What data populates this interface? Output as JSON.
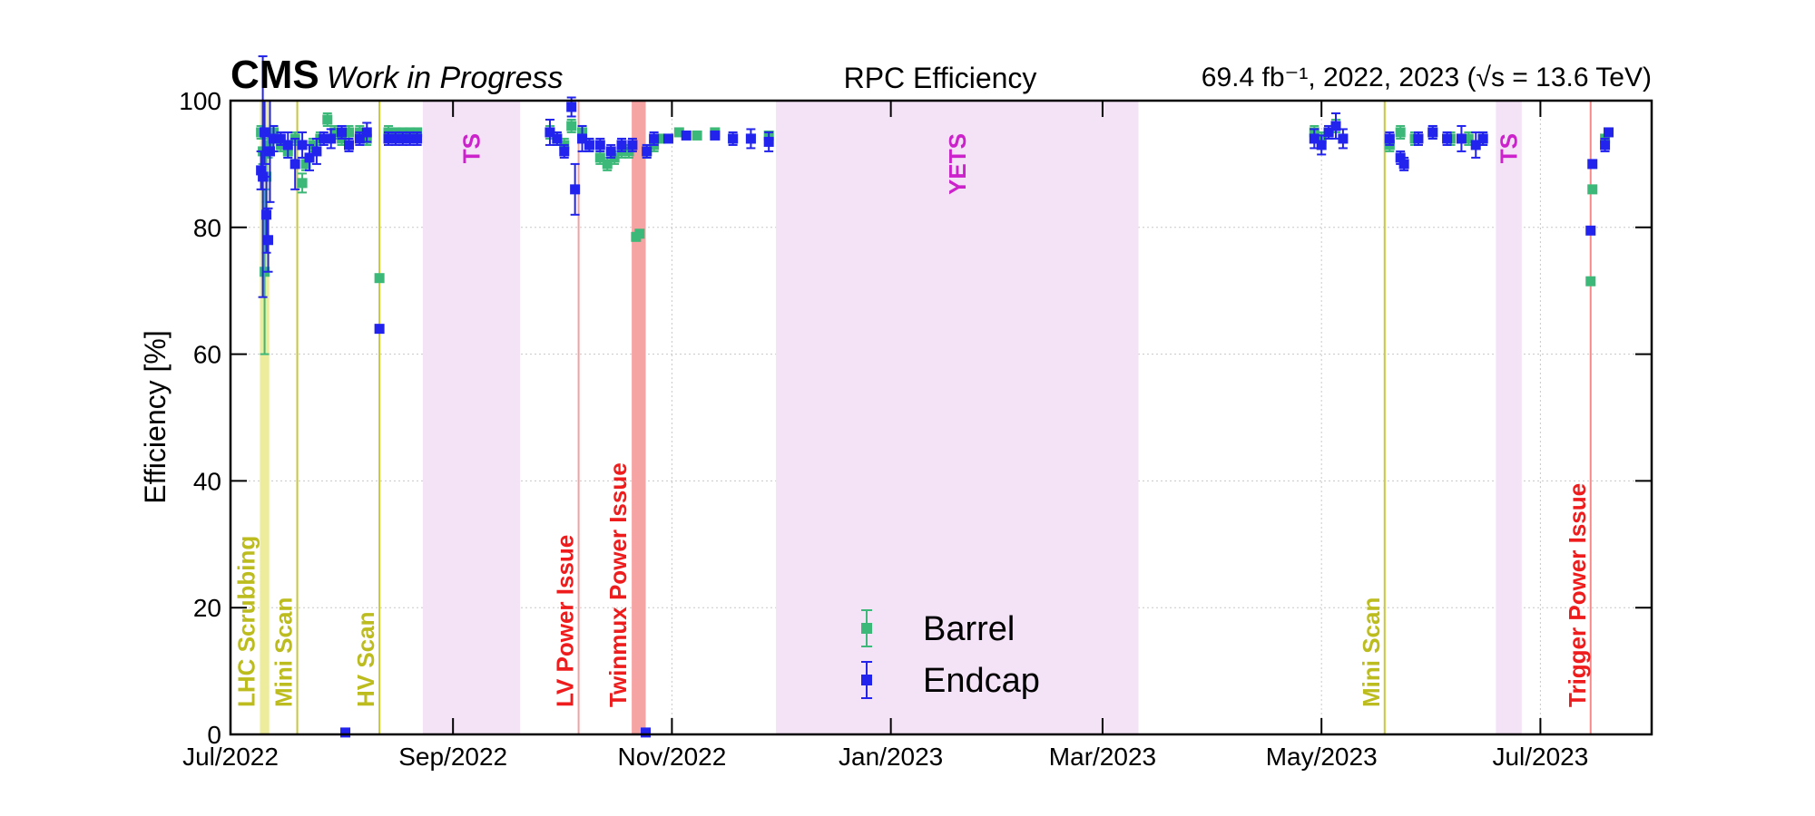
{
  "chart_data": {
    "type": "errorbar",
    "experiment": "CMS",
    "status": "Work in Progress",
    "title": "RPC Efficiency",
    "luminosity_label": "69.4 fb⁻¹, 2022, 2023 (√s = 13.6 TeV)",
    "y_label": "Efficiency [%]",
    "xlim": [
      0,
      396
    ],
    "xticks": [
      {
        "value": 0,
        "label": "Jul/2022"
      },
      {
        "value": 62,
        "label": "Sep/2022"
      },
      {
        "value": 123,
        "label": "Nov/2022"
      },
      {
        "value": 184,
        "label": "Jan/2023"
      },
      {
        "value": 243,
        "label": "Mar/2023"
      },
      {
        "value": 304,
        "label": "May/2023"
      },
      {
        "value": 365,
        "label": "Jul/2023"
      }
    ],
    "ylim": [
      0,
      100
    ],
    "yticks": [
      0,
      20,
      40,
      60,
      80,
      100
    ],
    "grid": true,
    "legend_position": "lower center",
    "regions": [
      {
        "label": "LHC Scrubbing",
        "start": 8.2,
        "end": 10.8,
        "color": "#ecec9c",
        "label_color": "#bcbc1e"
      },
      {
        "label": "Mini Scan",
        "start": 18.6,
        "end": 18.6,
        "color": "#c8c83a",
        "label_color": "#bcbc1e"
      },
      {
        "label": "HV Scan",
        "start": 41.5,
        "end": 41.5,
        "color": "#c8c83a",
        "label_color": "#bcbc1e"
      },
      {
        "label": "TS",
        "start": 53.6,
        "end": 80.7,
        "color": "#f4e2f6",
        "label_color": "#cc22cc"
      },
      {
        "label": "LV Power Issue",
        "start": 97,
        "end": 97,
        "color": "#f4a0a0",
        "label_color": "#ee1c1c"
      },
      {
        "label": "Twinmux Power Issue",
        "start": 111.8,
        "end": 115.7,
        "color": "#f5a3a3",
        "label_color": "#ee1c1c"
      },
      {
        "label": "YETS",
        "start": 152,
        "end": 253,
        "color": "#f4e2f6",
        "label_color": "#cc22cc"
      },
      {
        "label": "Mini Scan",
        "start": 321.6,
        "end": 321.6,
        "color": "#c8c83a",
        "label_color": "#bcbc1e"
      },
      {
        "label": "TS",
        "start": 352.6,
        "end": 359.8,
        "color": "#f4e2f6",
        "label_color": "#cc22cc"
      },
      {
        "label": "Trigger Power Issue",
        "start": 379,
        "end": 379,
        "color": "#f48a8a",
        "label_color": "#ee1c1c"
      }
    ],
    "series": [
      {
        "name": "Barrel",
        "color": "#3cb878",
        "x": [
          8.5,
          9,
          9.5,
          10,
          10.5,
          12,
          14,
          16,
          18,
          20,
          21,
          23,
          25,
          27,
          29,
          31,
          33,
          36,
          38,
          41.5,
          44,
          46,
          48,
          50,
          52,
          89,
          91,
          93,
          95,
          98,
          100,
          103,
          105,
          107,
          109,
          111,
          113,
          114,
          116,
          118,
          120,
          125,
          130,
          135,
          140,
          145,
          150,
          302,
          304,
          306,
          308,
          323,
          326,
          330,
          335,
          340,
          345,
          349,
          379,
          379.5,
          383
        ],
        "values": [
          95,
          92,
          73,
          88,
          93,
          95,
          93,
          92,
          94,
          87,
          90,
          93,
          94,
          97,
          95,
          94,
          95,
          95,
          94,
          72,
          95,
          95,
          95,
          95,
          95,
          95,
          94,
          93,
          96,
          95,
          93,
          91,
          90,
          91,
          92,
          92,
          78.5,
          79,
          92,
          93,
          94,
          95,
          94.5,
          95,
          94,
          94,
          94.5,
          95,
          94,
          95,
          96,
          93,
          95,
          94,
          95,
          94,
          94,
          94,
          71.5,
          86,
          94
        ],
        "errors": [
          1,
          2,
          13,
          4,
          2,
          1,
          1,
          1,
          1,
          1.5,
          1,
          1,
          1,
          1,
          1,
          1,
          1,
          1,
          1,
          0.5,
          1,
          0.5,
          0.5,
          0.5,
          0.5,
          1,
          1,
          1,
          1,
          1,
          1,
          1,
          1,
          1,
          1,
          1,
          0.5,
          0.5,
          1,
          1,
          0.5,
          0.5,
          0.5,
          0.5,
          0.5,
          0.5,
          0.5,
          1,
          1,
          1,
          1,
          1,
          1,
          1,
          1,
          1,
          1,
          1,
          0.5,
          0.5,
          0.5
        ]
      },
      {
        "name": "Endcap",
        "color": "#2323ee",
        "x": [
          8.5,
          9,
          9.5,
          10,
          10.5,
          11,
          12,
          14,
          16,
          18,
          20,
          22,
          24,
          26,
          28,
          31,
          32,
          33,
          36,
          38,
          41.5,
          44,
          46,
          48,
          50,
          52,
          89,
          91,
          93,
          95,
          96,
          98,
          100,
          103,
          106,
          109,
          112,
          115.7,
          116,
          118,
          122,
          127,
          135,
          140,
          145,
          150,
          302,
          304,
          306,
          308,
          310,
          323,
          326,
          327,
          331,
          335,
          339,
          343,
          347,
          349,
          379,
          379.5,
          383,
          384
        ],
        "values": [
          89,
          88,
          95,
          82,
          78,
          92,
          94,
          94,
          93,
          90,
          93,
          91,
          92,
          94,
          94,
          95,
          0.3,
          93,
          94,
          95,
          64,
          94,
          94,
          94,
          94,
          94,
          95,
          94,
          92,
          99,
          86,
          94,
          93,
          93,
          92,
          93,
          93,
          0.3,
          92,
          94,
          94,
          94.5,
          94.5,
          94,
          94,
          93.5,
          94,
          93,
          95,
          96,
          94,
          94,
          91,
          90,
          94,
          95,
          94,
          94,
          93,
          94,
          79.5,
          90,
          93,
          95
        ],
        "errors": [
          3,
          19,
          5,
          6,
          5,
          8,
          2,
          1,
          2,
          4,
          2,
          2,
          2,
          1,
          1.5,
          1,
          0.3,
          1,
          1,
          1.5,
          0.5,
          1,
          1,
          1,
          1,
          1,
          2,
          1,
          1,
          1.5,
          4,
          2,
          1,
          1,
          1,
          1,
          1,
          0.3,
          1,
          1,
          0.5,
          0.5,
          0.5,
          1,
          1.5,
          1.5,
          1.5,
          1.5,
          1,
          2,
          1.5,
          1,
          1,
          1,
          1,
          1,
          1,
          2,
          2,
          1,
          0.5,
          0.5,
          1,
          0.5
        ]
      }
    ]
  }
}
